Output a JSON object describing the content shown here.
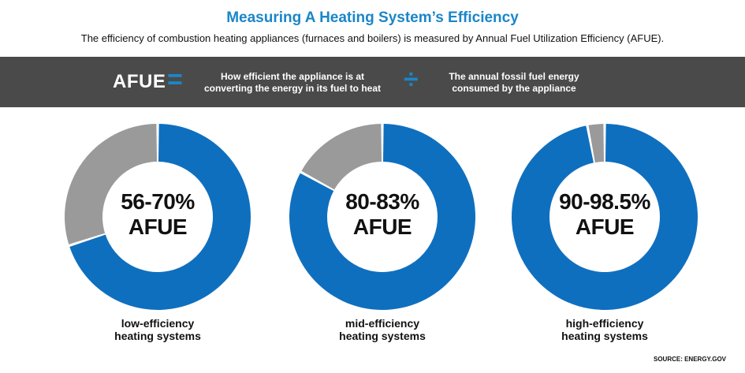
{
  "title": "Measuring A Heating System’s Efficiency",
  "subtitle": "The efficiency of combustion heating appliances (furnaces and boilers) is measured by Annual Fuel Utilization Efficiency (AFUE).",
  "formula": {
    "lhs": "AFUE",
    "equals_symbol": "=",
    "numerator_line1": "How efficient the appliance is at",
    "numerator_line2": "converting the energy in its fuel to heat",
    "divide_symbol": "÷",
    "denominator_line1": "The annual fossil fuel energy",
    "denominator_line2": "consumed by the appliance"
  },
  "source": "SOURCE: ENERGY.GOV",
  "colors": {
    "accent_blue": "#1a86c8",
    "slice_blue": "#0f6fbf",
    "slice_gray": "#9a9a9a",
    "band": "#4a4a4a"
  },
  "chart_data": [
    {
      "type": "pie",
      "center_line1": "56-70%",
      "center_line2": "AFUE",
      "caption_line1": "low-efficiency",
      "caption_line2": "heating systems",
      "slices": [
        {
          "label": "",
          "value": 70,
          "color": "#0f6fbf"
        },
        {
          "label": "",
          "value": 30,
          "color": "#9a9a9a"
        }
      ]
    },
    {
      "type": "pie",
      "center_line1": "80-83%",
      "center_line2": "AFUE",
      "caption_line1": "mid-efficiency",
      "caption_line2": "heating systems",
      "slices": [
        {
          "label": "",
          "value": 83,
          "color": "#0f6fbf"
        },
        {
          "label": "",
          "value": 17,
          "color": "#9a9a9a"
        }
      ]
    },
    {
      "type": "pie",
      "center_line1": "90-98.5%",
      "center_line2": "AFUE",
      "caption_line1": "high-efficiency",
      "caption_line2": "heating systems",
      "slices": [
        {
          "label": "",
          "value": 97,
          "color": "#0f6fbf"
        },
        {
          "label": "",
          "value": 3,
          "color": "#9a9a9a"
        }
      ]
    }
  ]
}
